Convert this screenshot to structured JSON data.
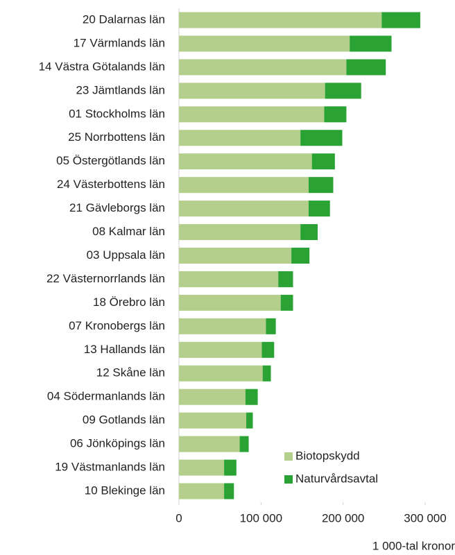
{
  "chart_data": {
    "type": "stacked-barh",
    "categories": [
      "20 Dalarnas län",
      "17 Värmlands län",
      "14 Västra Götalands län",
      "23 Jämtlands län",
      "01 Stockholms län",
      "25 Norrbottens län",
      "05 Östergötlands län",
      "24 Västerbottens län",
      "21 Gävleborgs län",
      "08 Kalmar län",
      "03 Uppsala län",
      "22 Västernorrlands län",
      "18 Örebro län",
      "07 Kronobergs län",
      "13 Hallands län",
      "12 Skåne län",
      "04 Södermanlands län",
      "09 Gotlands län",
      "06 Jönköpings län",
      "19 Västmanlands län",
      "10 Blekinge län"
    ],
    "series": [
      {
        "name": "Biotopskydd",
        "color": "#b3cf8b",
        "values": [
          247000,
          208000,
          204000,
          178000,
          177000,
          148000,
          162000,
          158000,
          158000,
          148000,
          137000,
          121000,
          124000,
          106000,
          101000,
          102000,
          81000,
          82000,
          74000,
          55000,
          55000
        ]
      },
      {
        "name": "Naturvårdsavtal",
        "color": "#2aa334",
        "values": [
          47000,
          51000,
          48000,
          44000,
          27000,
          51000,
          28000,
          30000,
          26000,
          21000,
          22000,
          18000,
          15000,
          12000,
          15000,
          10000,
          15000,
          8000,
          11000,
          15000,
          12000
        ]
      }
    ],
    "xlim": [
      0,
      300000
    ],
    "xticks": [
      0,
      {
        "value": 100000,
        "label": "100 000"
      },
      {
        "value": 200000,
        "label": "200 000"
      },
      {
        "value": 300000,
        "label": "300 000"
      }
    ],
    "x_label": "1 000-tal kronor",
    "legend": "lower-right"
  }
}
